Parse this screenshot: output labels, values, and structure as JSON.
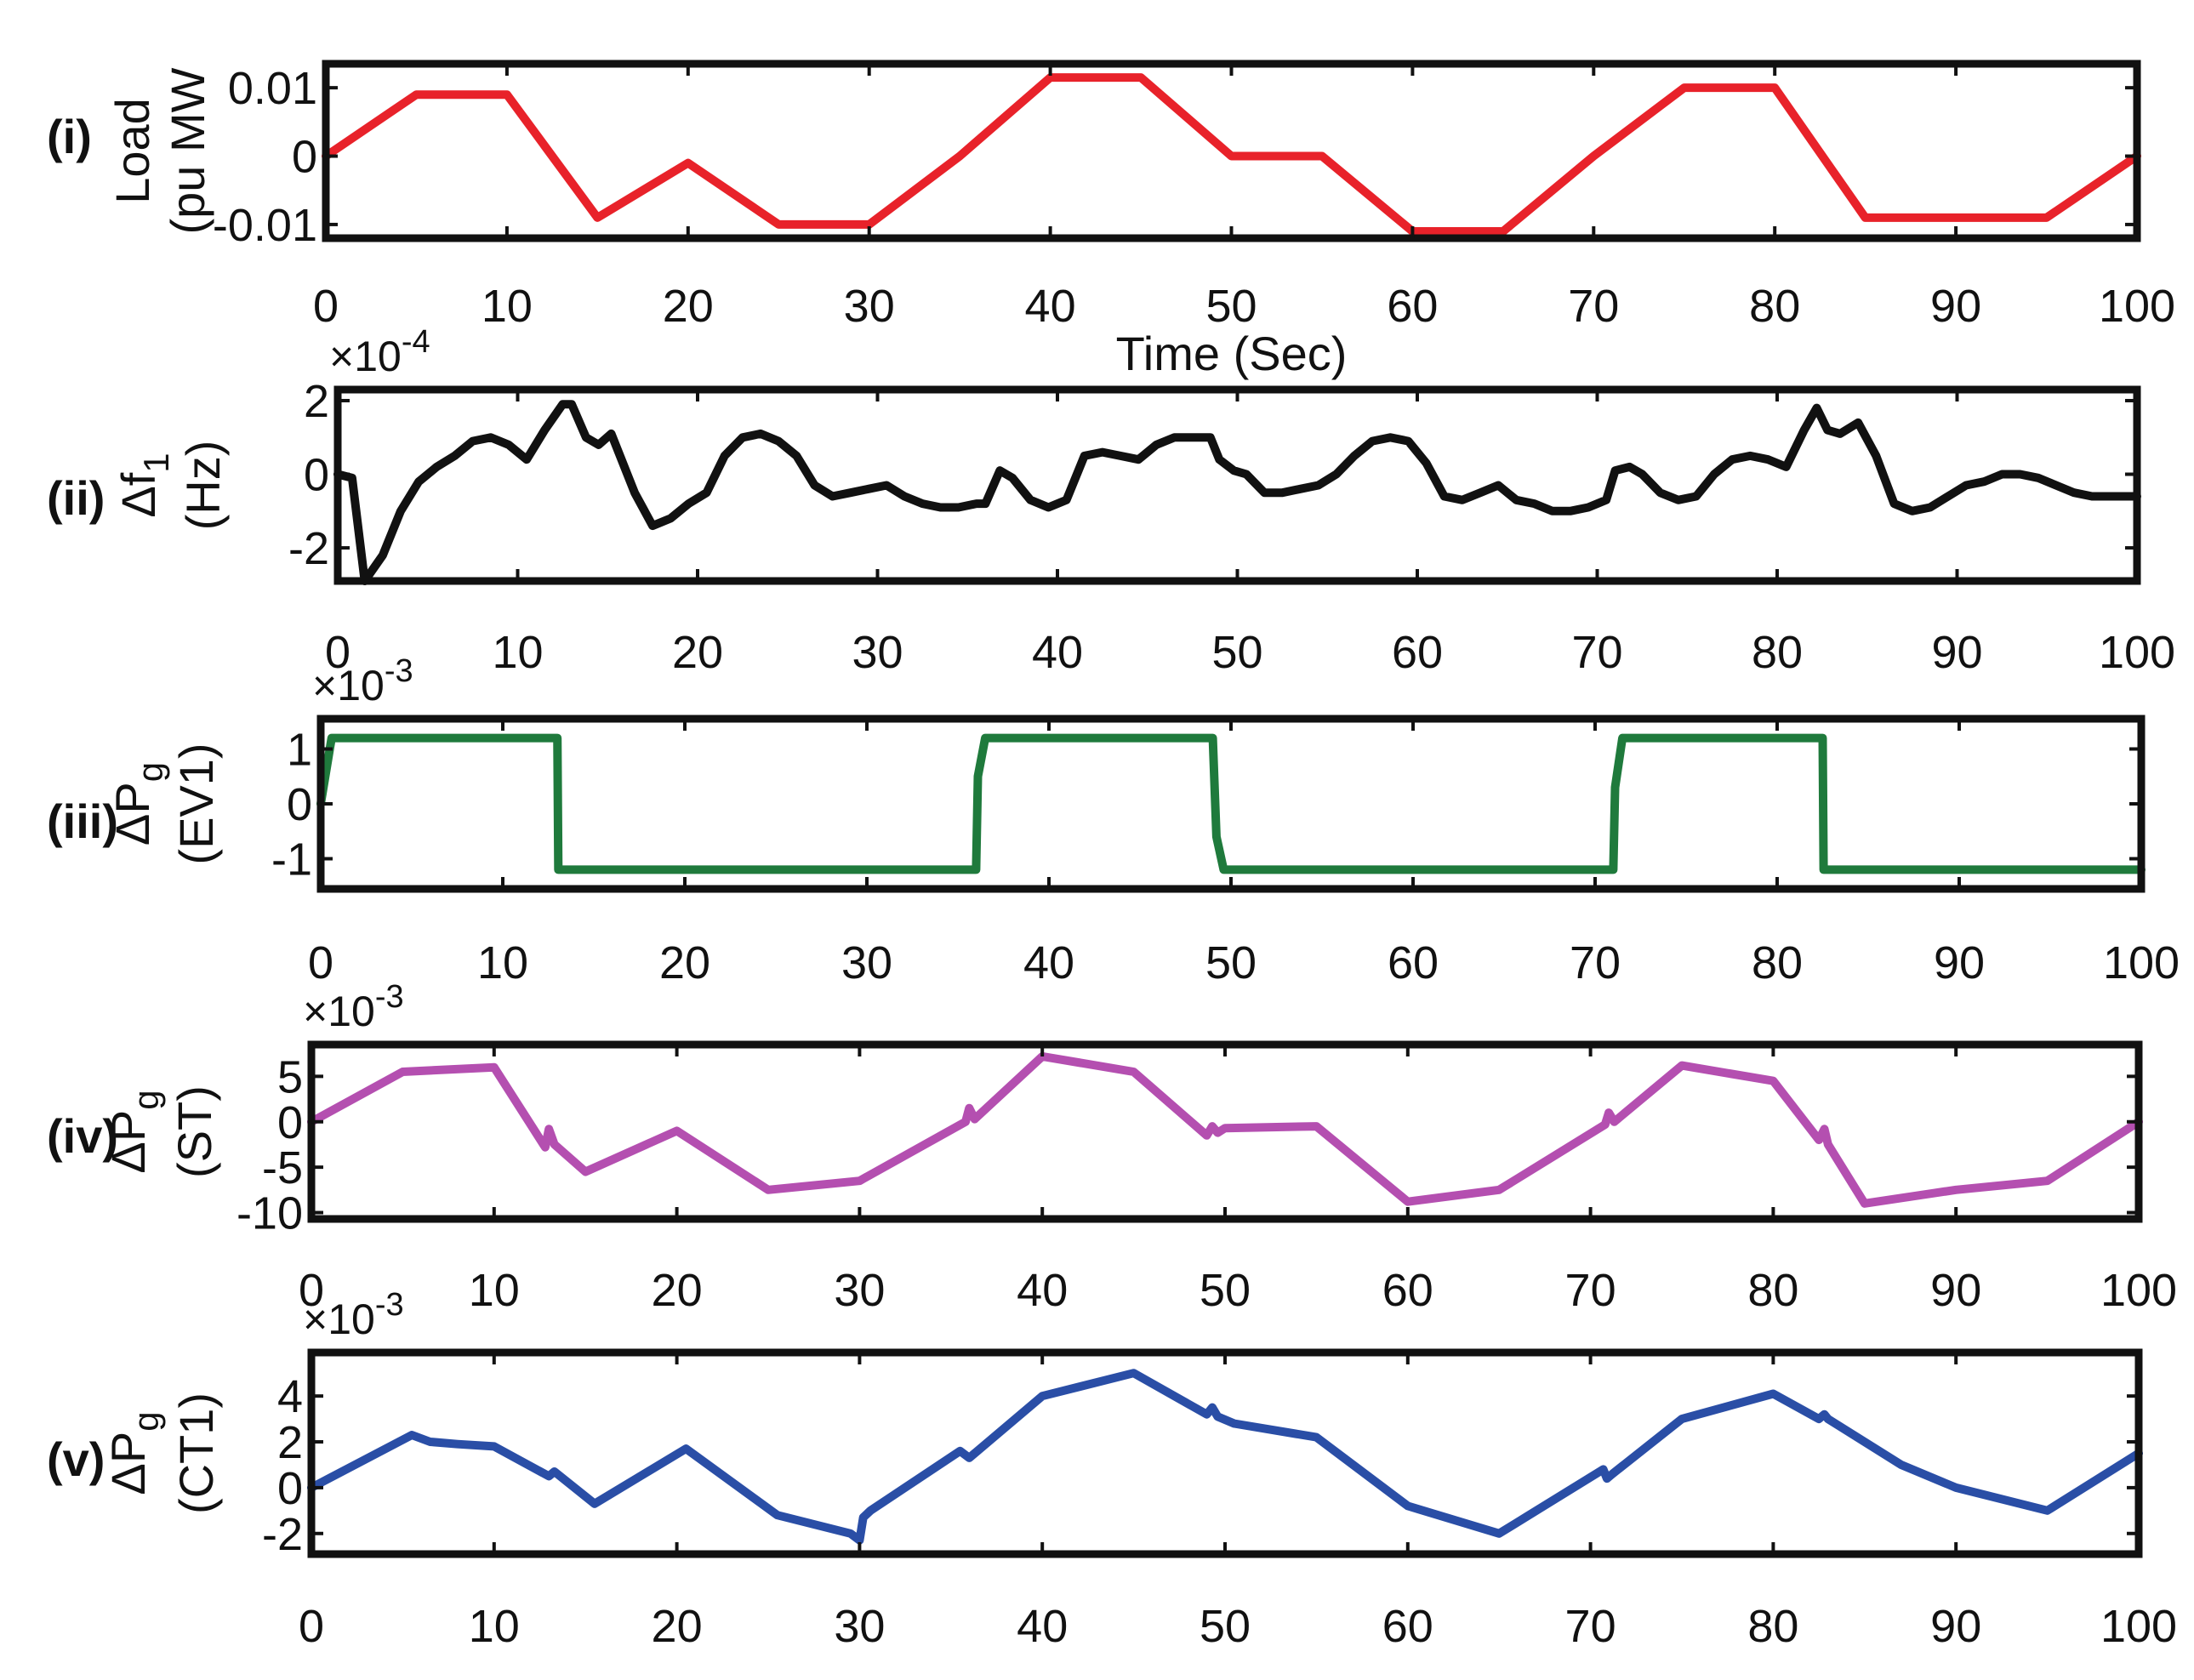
{
  "chart_data": [
    {
      "type": "line",
      "panel_label": "(i)",
      "ylabel_lines": [
        "Load",
        "(pu MW"
      ],
      "xlabel": "Time (Sec)",
      "exponent": "",
      "xlim": [
        0,
        100
      ],
      "ylim": [
        -0.012,
        0.0135
      ],
      "xticks": [
        0,
        10,
        20,
        30,
        40,
        50,
        60,
        70,
        80,
        90,
        100
      ],
      "xtick_labels": [
        "0",
        "10",
        "20",
        "30",
        "40",
        "50",
        "60",
        "70",
        "80",
        "90",
        "100"
      ],
      "yticks": [
        0.01,
        0,
        -0.01
      ],
      "ytick_labels": [
        "0.01",
        "0",
        "-0.01"
      ],
      "color": "#e8222a",
      "series": [
        {
          "x": [
            0,
            5,
            10,
            15,
            20,
            25,
            30,
            35,
            40,
            45,
            50,
            55,
            60,
            65,
            70,
            75,
            80,
            85,
            90,
            95,
            100
          ],
          "y": [
            0,
            0.009,
            0.009,
            -0.009,
            -0.001,
            -0.01,
            -0.01,
            0,
            0.0115,
            0.0115,
            0,
            0,
            -0.011,
            -0.011,
            0,
            0.01,
            0.01,
            -0.009,
            -0.009,
            -0.009,
            0
          ]
        }
      ]
    },
    {
      "type": "line",
      "panel_label": "(ii)",
      "ylabel_lines": [
        "Δf",
        "(Hz)"
      ],
      "ylabel_sub": "1",
      "xlabel": "",
      "exponent": "×10",
      "exponent_power": "-4",
      "xlim": [
        0,
        100
      ],
      "ylim": [
        -2.9,
        2.3
      ],
      "xticks": [
        0,
        10,
        20,
        30,
        40,
        50,
        60,
        70,
        80,
        90,
        100
      ],
      "xtick_labels": [
        "0",
        "10",
        "20",
        "30",
        "40",
        "50",
        "60",
        "70",
        "80",
        "90",
        "100"
      ],
      "yticks": [
        2,
        0,
        -2
      ],
      "ytick_labels": [
        "2",
        "0",
        "-2"
      ],
      "color": "#111111",
      "series": [
        {
          "x": [
            0,
            0.8,
            1.5,
            2.5,
            3.5,
            4.5,
            5.5,
            6.5,
            7.5,
            8.5,
            9.5,
            10.5,
            11.5,
            12.5,
            13.0,
            13.8,
            14.5,
            15.2,
            16.5,
            17.5,
            18.5,
            19.5,
            20.5,
            21.5,
            22.5,
            23.5,
            24.5,
            25.5,
            26.5,
            27.5,
            28.5,
            29.5,
            30.5,
            31.5,
            32.5,
            33.5,
            34.5,
            35.5,
            36.0,
            36.8,
            37.5,
            38.5,
            39.5,
            40.5,
            41.5,
            42.5,
            43.5,
            44.5,
            45.5,
            46.5,
            47.5,
            48.5,
            49.0,
            49.8,
            50.5,
            51.5,
            52.5,
            53.5,
            54.5,
            55.5,
            56.5,
            57.5,
            58.5,
            59.5,
            60.5,
            61.5,
            62.5,
            63.5,
            64.5,
            65.5,
            66.5,
            67.5,
            68.5,
            69.5,
            70.5,
            71.0,
            71.8,
            72.5,
            73.5,
            74.5,
            75.5,
            76.5,
            77.5,
            78.5,
            79.5,
            80.5,
            81.5,
            82.2,
            82.8,
            83.5,
            84.5,
            85.5,
            86.5,
            87.5,
            88.5,
            89.5,
            90.5,
            91.5,
            92.5,
            93.5,
            94.5,
            95.5,
            96.5,
            97.5,
            98.5,
            99.5,
            100
          ],
          "y": [
            0,
            -0.1,
            -2.9,
            -2.2,
            -1.0,
            -0.2,
            0.2,
            0.5,
            0.9,
            1.0,
            0.8,
            0.4,
            1.2,
            1.9,
            1.9,
            1.0,
            0.8,
            1.1,
            -0.5,
            -1.4,
            -1.2,
            -0.8,
            -0.5,
            0.5,
            1.0,
            1.1,
            0.9,
            0.5,
            -0.3,
            -0.6,
            -0.5,
            -0.4,
            -0.3,
            -0.6,
            -0.8,
            -0.9,
            -0.9,
            -0.8,
            -0.8,
            0.1,
            -0.1,
            -0.7,
            -0.9,
            -0.7,
            0.5,
            0.6,
            0.5,
            0.4,
            0.8,
            1.0,
            1.0,
            1.0,
            0.4,
            0.1,
            0.0,
            -0.5,
            -0.5,
            -0.4,
            -0.3,
            0.0,
            0.5,
            0.9,
            1.0,
            0.9,
            0.3,
            -0.6,
            -0.7,
            -0.5,
            -0.3,
            -0.7,
            -0.8,
            -1.0,
            -1.0,
            -0.9,
            -0.7,
            0.1,
            0.2,
            0.0,
            -0.5,
            -0.7,
            -0.6,
            0.0,
            0.4,
            0.5,
            0.4,
            0.2,
            1.2,
            1.8,
            1.2,
            1.1,
            1.4,
            0.5,
            -0.8,
            -1.0,
            -0.9,
            -0.6,
            -0.3,
            -0.2,
            0.0,
            0.0,
            -0.1,
            -0.3,
            -0.5,
            -0.6,
            -0.6,
            -0.6,
            -0.6
          ]
        }
      ]
    },
    {
      "type": "line",
      "panel_label": "(iii)",
      "ylabel_lines": [
        "ΔP",
        "(EV1)"
      ],
      "ylabel_sub": "g",
      "xlabel": "",
      "exponent": "×10",
      "exponent_power": "-3",
      "xlim": [
        0,
        100
      ],
      "ylim": [
        -1.55,
        1.55
      ],
      "xticks": [
        0,
        10,
        20,
        30,
        40,
        50,
        60,
        70,
        80,
        90,
        100
      ],
      "xtick_labels": [
        "0",
        "10",
        "20",
        "30",
        "40",
        "50",
        "60",
        "70",
        "80",
        "90",
        "100"
      ],
      "yticks": [
        1,
        0,
        -1
      ],
      "ytick_labels": [
        "1",
        "0",
        "-1"
      ],
      "color": "#1f7a3c",
      "series": [
        {
          "x": [
            0,
            0.6,
            1.0,
            13.0,
            13.05,
            36.0,
            36.1,
            36.5,
            49.0,
            49.2,
            49.6,
            71.0,
            71.1,
            71.5,
            82.5,
            82.55,
            100
          ],
          "y": [
            0,
            1.2,
            1.2,
            1.2,
            -1.2,
            -1.2,
            0.5,
            1.2,
            1.2,
            -0.6,
            -1.2,
            -1.2,
            0.3,
            1.2,
            1.2,
            -1.2,
            -1.2
          ]
        }
      ]
    },
    {
      "type": "line",
      "panel_label": "(iv)",
      "ylabel_lines": [
        "ΔP",
        "(ST)"
      ],
      "ylabel_sub": "g",
      "xlabel": "",
      "exponent": "×10",
      "exponent_power": "-3",
      "xlim": [
        0,
        100
      ],
      "ylim": [
        -10.7,
        8.5
      ],
      "xticks": [
        0,
        10,
        20,
        30,
        40,
        50,
        60,
        70,
        80,
        90,
        100
      ],
      "xtick_labels": [
        "0",
        "10",
        "20",
        "30",
        "40",
        "50",
        "60",
        "70",
        "80",
        "90",
        "100"
      ],
      "yticks": [
        5,
        0,
        -5,
        -10
      ],
      "ytick_labels": [
        "5",
        "0",
        "-5",
        "-10"
      ],
      "color": "#b44fb0",
      "series": [
        {
          "x": [
            0,
            5,
            10,
            12.8,
            13.0,
            13.3,
            15,
            20,
            25,
            30,
            35.8,
            36.0,
            36.3,
            40,
            45,
            49.0,
            49.3,
            49.6,
            50,
            55,
            60,
            65,
            70.8,
            71.0,
            71.3,
            75,
            80,
            82.5,
            82.8,
            83.0,
            85,
            90,
            95,
            100
          ],
          "y": [
            0,
            5.5,
            6.0,
            -2.8,
            -0.8,
            -2.5,
            -5.5,
            -1.0,
            -7.5,
            -6.5,
            0,
            1.5,
            0.3,
            7.2,
            5.5,
            -1.5,
            -0.5,
            -1.2,
            -0.7,
            -0.5,
            -8.8,
            -7.5,
            -0.3,
            1.0,
            0,
            6.2,
            4.5,
            -2.0,
            -0.8,
            -2.5,
            -9.0,
            -7.5,
            -6.5,
            0
          ]
        }
      ]
    },
    {
      "type": "line",
      "panel_label": "(v)",
      "ylabel_lines": [
        "ΔP",
        "(CT1)"
      ],
      "ylabel_sub": "g",
      "xlabel": "",
      "exponent": "×10",
      "exponent_power": "-3",
      "xlim": [
        0,
        100
      ],
      "ylim": [
        -2.9,
        5.9
      ],
      "xticks": [
        0,
        10,
        20,
        30,
        40,
        50,
        60,
        70,
        80,
        90,
        100
      ],
      "xtick_labels": [
        "0",
        "10",
        "20",
        "30",
        "40",
        "50",
        "60",
        "70",
        "80",
        "90",
        "100"
      ],
      "yticks": [
        4,
        2,
        0,
        -2
      ],
      "ytick_labels": [
        "4",
        "2",
        "0",
        "-2"
      ],
      "color": "#2a4ea6",
      "series": [
        {
          "x": [
            0,
            5.5,
            6.5,
            8,
            10,
            13,
            13.3,
            15.5,
            20.5,
            25.5,
            29.5,
            30.0,
            30.2,
            30.6,
            35.5,
            36.0,
            36.3,
            40,
            45,
            49.0,
            49.3,
            49.6,
            50.5,
            55,
            60,
            65,
            70.7,
            70.9,
            71.2,
            75,
            80,
            82.5,
            82.8,
            83,
            87,
            90,
            95,
            100
          ],
          "y": [
            0,
            2.3,
            2.0,
            1.9,
            1.8,
            0.5,
            0.7,
            -0.7,
            1.7,
            -1.2,
            -2.0,
            -2.3,
            -1.3,
            -1.0,
            1.6,
            1.3,
            1.5,
            4.0,
            5.0,
            3.2,
            3.5,
            3.1,
            2.8,
            2.2,
            -0.8,
            -2.0,
            0.8,
            0.4,
            0.6,
            3.0,
            4.1,
            3.0,
            3.2,
            3.0,
            1.0,
            0.0,
            -1.0,
            1.5
          ]
        }
      ]
    }
  ]
}
